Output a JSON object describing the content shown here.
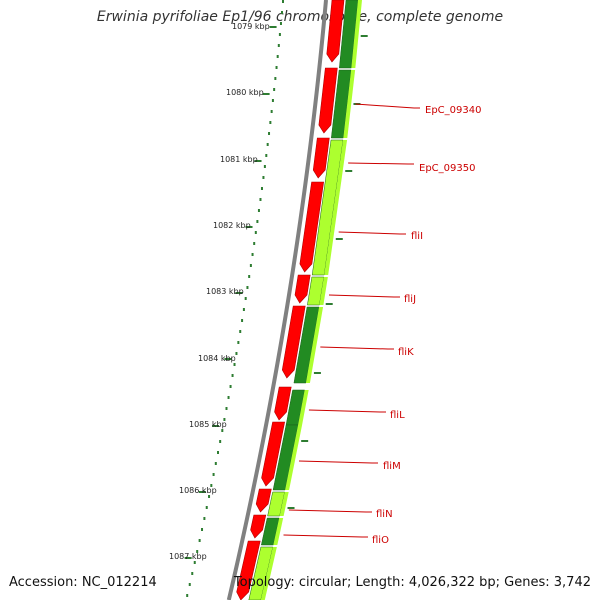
{
  "title": "Erwinia pyrifoliae Ep1/96 chromosome, complete genome",
  "accession": "Accession: NC_012214",
  "summary": "Topology: circular; Length: 4,026,322 bp; Genes: 3,742",
  "scale_labels": [
    "1079 kbp",
    "1080 kbp",
    "1081 kbp",
    "1082 kbp",
    "1083 kbp",
    "1084 kbp",
    "1085 kbp",
    "1086 kbp",
    "1087 kbp"
  ],
  "gene_labels": [
    "EpC_09340",
    "EpC_09350",
    "fliI",
    "fliJ",
    "fliK",
    "fliL",
    "fliM",
    "fliN",
    "fliO"
  ],
  "colors": {
    "forward_gene": "#ff0000",
    "cds_dark": "#228b22",
    "cds_light": "#adff2f",
    "backbone": "#808080",
    "ticks": "#2e7d32",
    "label": "#cc0000"
  }
}
